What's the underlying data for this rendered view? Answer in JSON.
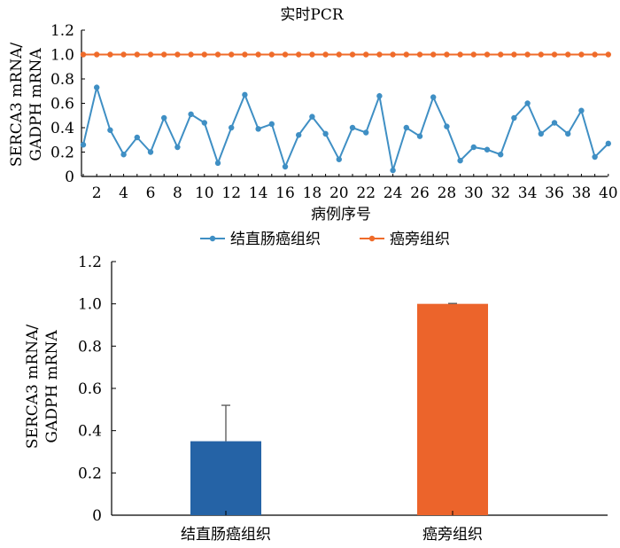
{
  "chart_data": [
    {
      "type": "line",
      "title": "实时PCR",
      "xlabel": "病例序号",
      "ylabel": [
        "SERCA3 mRNA/",
        "GADPH mRNA"
      ],
      "ylim": [
        0,
        1.2
      ],
      "yticks": [
        "0",
        "0.2",
        "0.4",
        "0.6",
        "0.8",
        "1.0",
        "1.2"
      ],
      "xlim": [
        0,
        40
      ],
      "xticks": [
        "2",
        "4",
        "6",
        "8",
        "10",
        "12",
        "14",
        "16",
        "18",
        "20",
        "22",
        "24",
        "26",
        "28",
        "30",
        "32",
        "34",
        "36",
        "38",
        "40"
      ],
      "grid": false,
      "legend": "bottom",
      "x": [
        1,
        2,
        3,
        4,
        5,
        6,
        7,
        8,
        9,
        10,
        11,
        12,
        13,
        14,
        15,
        16,
        17,
        18,
        19,
        20,
        21,
        22,
        23,
        24,
        25,
        26,
        27,
        28,
        29,
        30,
        31,
        32,
        33,
        34,
        35,
        36,
        37,
        38,
        39,
        40
      ],
      "series": [
        {
          "name": "结直肠癌组织",
          "color": "#3f8fc4",
          "values": [
            0.26,
            0.73,
            0.38,
            0.18,
            0.32,
            0.2,
            0.48,
            0.24,
            0.51,
            0.44,
            0.11,
            0.4,
            0.67,
            0.39,
            0.43,
            0.08,
            0.34,
            0.49,
            0.35,
            0.14,
            0.4,
            0.36,
            0.66,
            0.05,
            0.4,
            0.33,
            0.65,
            0.41,
            0.13,
            0.24,
            0.22,
            0.18,
            0.48,
            0.6,
            0.35,
            0.44,
            0.35,
            0.54,
            0.16,
            0.27
          ]
        },
        {
          "name": "癌旁组织",
          "color": "#ef6b2a",
          "values": [
            1,
            1,
            1,
            1,
            1,
            1,
            1,
            1,
            1,
            1,
            1,
            1,
            1,
            1,
            1,
            1,
            1,
            1,
            1,
            1,
            1,
            1,
            1,
            1,
            1,
            1,
            1,
            1,
            1,
            1,
            1,
            1,
            1,
            1,
            1,
            1,
            1,
            1,
            1,
            1
          ]
        }
      ]
    },
    {
      "type": "bar",
      "title": "",
      "xlabel": "",
      "ylabel": [
        "SERCA3 mRNA/",
        "GADPH mRNA"
      ],
      "ylim": [
        0,
        1.2
      ],
      "yticks": [
        "0",
        "0.2",
        "0.4",
        "0.6",
        "0.8",
        "1.0",
        "1.2"
      ],
      "grid": false,
      "categories": [
        "结直肠癌组织",
        "癌旁组织"
      ],
      "values": [
        0.35,
        1.0
      ],
      "errors": [
        0.17,
        0.002
      ],
      "colors": [
        "#2563a6",
        "#ec642b"
      ]
    }
  ]
}
